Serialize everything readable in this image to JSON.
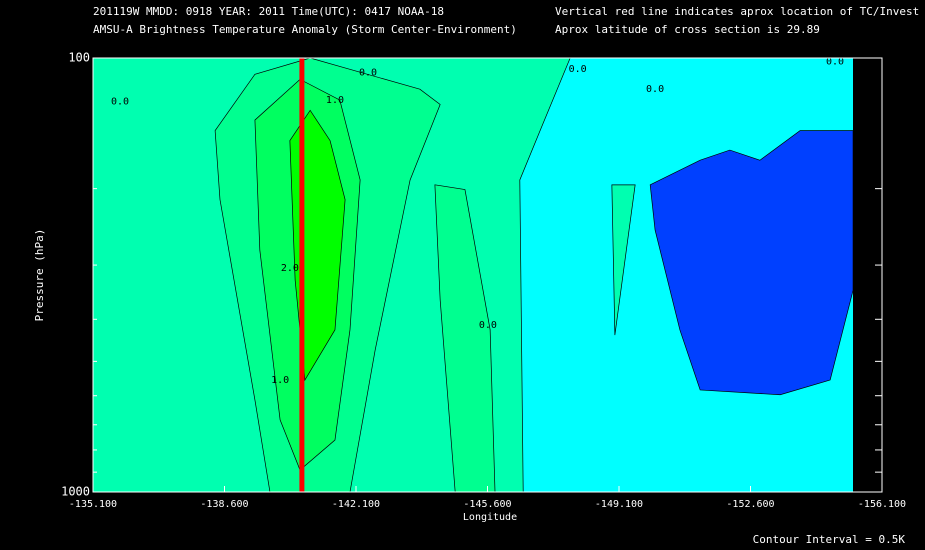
{
  "chart_data": {
    "type": "contour",
    "header": [
      "201119W  MMDD: 0918 YEAR: 2011 Time(UTC): 0417 NOAA-18",
      "AMSU-A Brightness Temperature Anomaly (Storm Center-Environment)"
    ],
    "notes": [
      "Vertical red line indicates aprox location of TC/Invest",
      "Aprox latitude of cross section is 29.89"
    ],
    "xlabel": "Longitude",
    "ylabel": "Pressure (hPa)",
    "footer": "Contour Interval = 0.5K",
    "xlim": [
      -135.1,
      -156.1
    ],
    "xticks": [
      {
        "value": -135.1,
        "label": "-135.100"
      },
      {
        "value": -138.6,
        "label": "-138.600"
      },
      {
        "value": -142.1,
        "label": "-142.100"
      },
      {
        "value": -145.6,
        "label": "-145.600"
      },
      {
        "value": -149.1,
        "label": "-149.100"
      },
      {
        "value": -152.6,
        "label": "-152.600"
      },
      {
        "value": -156.1,
        "label": "-156.100"
      }
    ],
    "ylim": [
      100,
      1000
    ],
    "yscale": "log",
    "yticks": [
      100,
      1000
    ],
    "minor_yticks": [
      200,
      300,
      400,
      500,
      600,
      700,
      800,
      900
    ],
    "background_color": "#00ffff",
    "tc_longitude": -140.66,
    "tc_color": "#ff0000",
    "regions": [
      {
        "level": 0.0,
        "color": "#00ffb0",
        "points": [
          [
            -135.1,
            100
          ],
          [
            -147.8,
            100
          ],
          [
            -147.0,
            147
          ],
          [
            -146.46,
            191
          ],
          [
            -146.55,
            1000
          ],
          [
            -135.1,
            1000
          ]
        ]
      },
      {
        "level": 0.0,
        "color": "#00ffb0",
        "points": [
          [
            -148.91,
            196
          ],
          [
            -149.53,
            196
          ],
          [
            -148.99,
            435
          ]
        ]
      },
      {
        "level": -0.5,
        "color": "#0040ff",
        "points": [
          [
            -149.93,
            196
          ],
          [
            -151.26,
            172
          ],
          [
            -152.05,
            163
          ],
          [
            -152.85,
            172
          ],
          [
            -153.92,
            147
          ],
          [
            -155.33,
            147
          ],
          [
            -155.33,
            343
          ],
          [
            -154.72,
            552
          ],
          [
            -153.39,
            597
          ],
          [
            -151.26,
            582
          ],
          [
            -150.72,
            423
          ],
          [
            -150.06,
            249
          ]
        ]
      },
      {
        "level": 0.5,
        "color": "#00ff90",
        "points": [
          [
            -138.35,
            147
          ],
          [
            -139.41,
            109
          ],
          [
            -140.88,
            100
          ],
          [
            -143.8,
            118
          ],
          [
            -144.34,
            128
          ],
          [
            -143.54,
            191
          ],
          [
            -142.61,
            471
          ],
          [
            -141.94,
            1000
          ],
          [
            -139.81,
            1000
          ],
          [
            -139.41,
            614
          ],
          [
            -138.48,
            212
          ]
        ]
      },
      {
        "level": 0.5,
        "color": "#00ff90",
        "points": [
          [
            -144.2,
            196
          ],
          [
            -145.0,
            201
          ],
          [
            -145.67,
            423
          ],
          [
            -145.8,
            1000
          ],
          [
            -144.74,
            1000
          ],
          [
            -144.34,
            361
          ]
        ]
      },
      {
        "level": 1.0,
        "color": "#00ff60",
        "points": [
          [
            -139.41,
            139
          ],
          [
            -140.61,
            112
          ],
          [
            -141.67,
            125
          ],
          [
            -142.21,
            191
          ],
          [
            -141.94,
            423
          ],
          [
            -141.54,
            759
          ],
          [
            -140.61,
            890
          ],
          [
            -140.08,
            682
          ],
          [
            -139.54,
            277
          ]
        ]
      },
      {
        "level": 2.0,
        "color": "#00ff00",
        "points": [
          [
            -140.34,
            155
          ],
          [
            -140.88,
            132
          ],
          [
            -141.41,
            155
          ],
          [
            -141.81,
            212
          ],
          [
            -141.54,
            423
          ],
          [
            -140.74,
            552
          ],
          [
            -140.48,
            325
          ]
        ]
      }
    ],
    "contour_labels": [
      {
        "text": "0.0",
        "lon": -135.82,
        "p": 126
      },
      {
        "text": "0.0",
        "lon": -142.42,
        "p": 108
      },
      {
        "text": "1.0",
        "lon": -141.54,
        "p": 125
      },
      {
        "text": "2.0",
        "lon": -140.34,
        "p": 305
      },
      {
        "text": "1.0",
        "lon": -140.08,
        "p": 552
      },
      {
        "text": "0.0",
        "lon": -145.61,
        "p": 412
      },
      {
        "text": "0.0",
        "lon": -148.0,
        "p": 106
      },
      {
        "text": "0.0",
        "lon": -150.06,
        "p": 118
      },
      {
        "text": "0.0",
        "lon": -154.85,
        "p": 102
      }
    ]
  }
}
